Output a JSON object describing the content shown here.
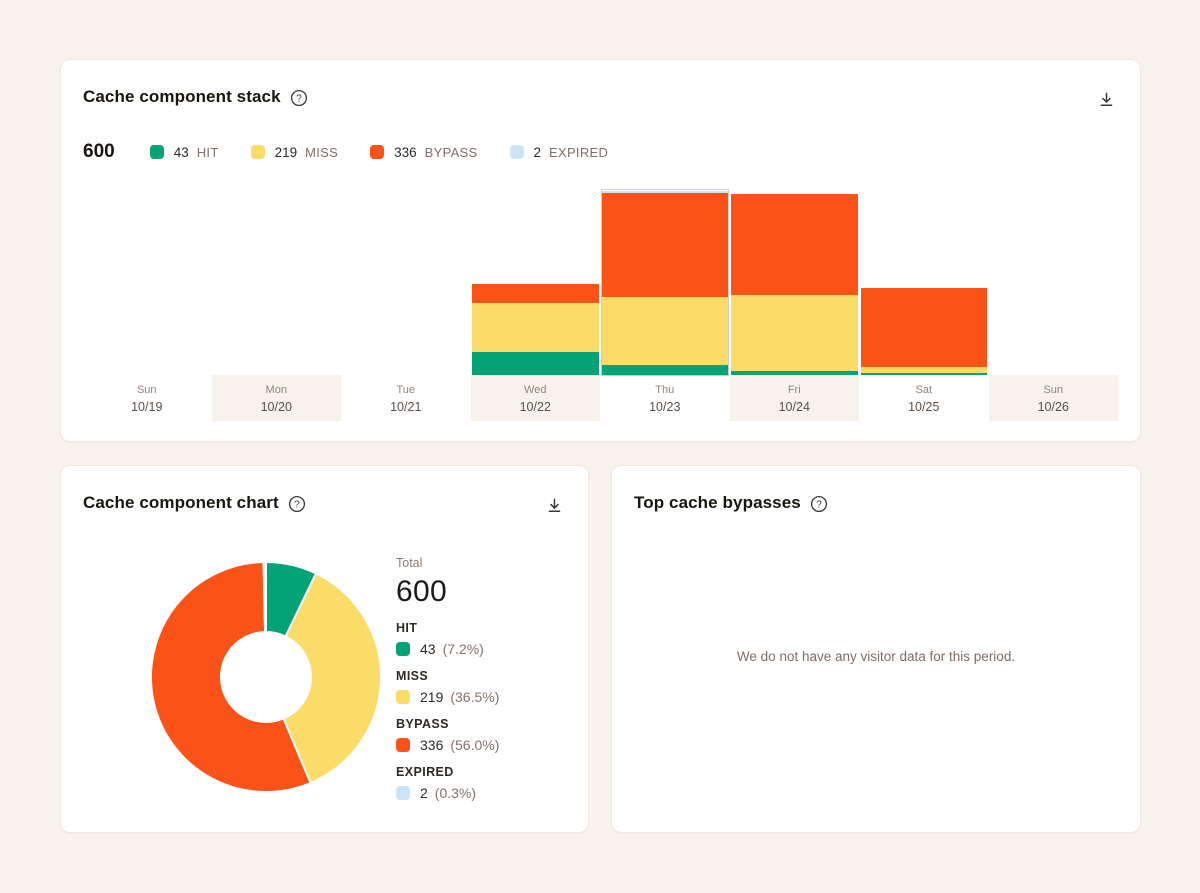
{
  "colors": {
    "hit": "#01a377",
    "miss": "#fcdc69",
    "bypass": "#fb5317",
    "expired": "#cbe4f9",
    "page_bg": "#f8f2ec",
    "card_bg": "#ffffff"
  },
  "cards": {
    "stack": {
      "title": "Cache component stack",
      "total": "600"
    },
    "chart": {
      "title": "Cache component chart",
      "total_label": "Total",
      "total_value": "600"
    },
    "bypasses": {
      "title": "Top cache bypasses",
      "empty_message": "We do not have any visitor data for this period."
    }
  },
  "icons": {
    "help": "question-mark-circle",
    "download": "download-arrow-to-line"
  },
  "chart_data": [
    {
      "type": "bar",
      "subtype": "stacked",
      "title": "Cache component stack",
      "categories": [
        {
          "day": "Sun",
          "date": "10/19"
        },
        {
          "day": "Mon",
          "date": "10/20"
        },
        {
          "day": "Tue",
          "date": "10/21"
        },
        {
          "day": "Wed",
          "date": "10/22"
        },
        {
          "day": "Thu",
          "date": "10/23"
        },
        {
          "day": "Fri",
          "date": "10/24"
        },
        {
          "day": "Sat",
          "date": "10/25"
        },
        {
          "day": "Sun",
          "date": "10/26"
        }
      ],
      "series": [
        {
          "name": "HIT",
          "color": "#01a377",
          "values": [
            0,
            0,
            0,
            25,
            11,
            5,
            2,
            0
          ]
        },
        {
          "name": "MISS",
          "color": "#fcdc69",
          "values": [
            0,
            0,
            0,
            54,
            75,
            83,
            7,
            0
          ]
        },
        {
          "name": "BYPASS",
          "color": "#fb5317",
          "values": [
            0,
            0,
            0,
            22,
            115,
            112,
            87,
            0
          ]
        },
        {
          "name": "EXPIRED",
          "color": "#cbe4f9",
          "values": [
            0,
            0,
            0,
            0,
            2,
            0,
            0,
            0
          ]
        }
      ],
      "total": 600,
      "shaded_columns": [
        1,
        3,
        5,
        7
      ],
      "outlined_column": 4,
      "legend_position": "top"
    },
    {
      "type": "pie",
      "subtype": "donut",
      "title": "Cache component chart",
      "total": 600,
      "slices": [
        {
          "label": "HIT",
          "value": 43,
          "pct": "(7.2%)",
          "color": "#01a377"
        },
        {
          "label": "MISS",
          "value": 219,
          "pct": "(36.5%)",
          "color": "#fcdc69"
        },
        {
          "label": "BYPASS",
          "value": 336,
          "pct": "(56.0%)",
          "color": "#fb5317"
        },
        {
          "label": "EXPIRED",
          "value": 2,
          "pct": "(0.3%)",
          "color": "#cbe4f9"
        }
      ],
      "legend_position": "right"
    }
  ]
}
